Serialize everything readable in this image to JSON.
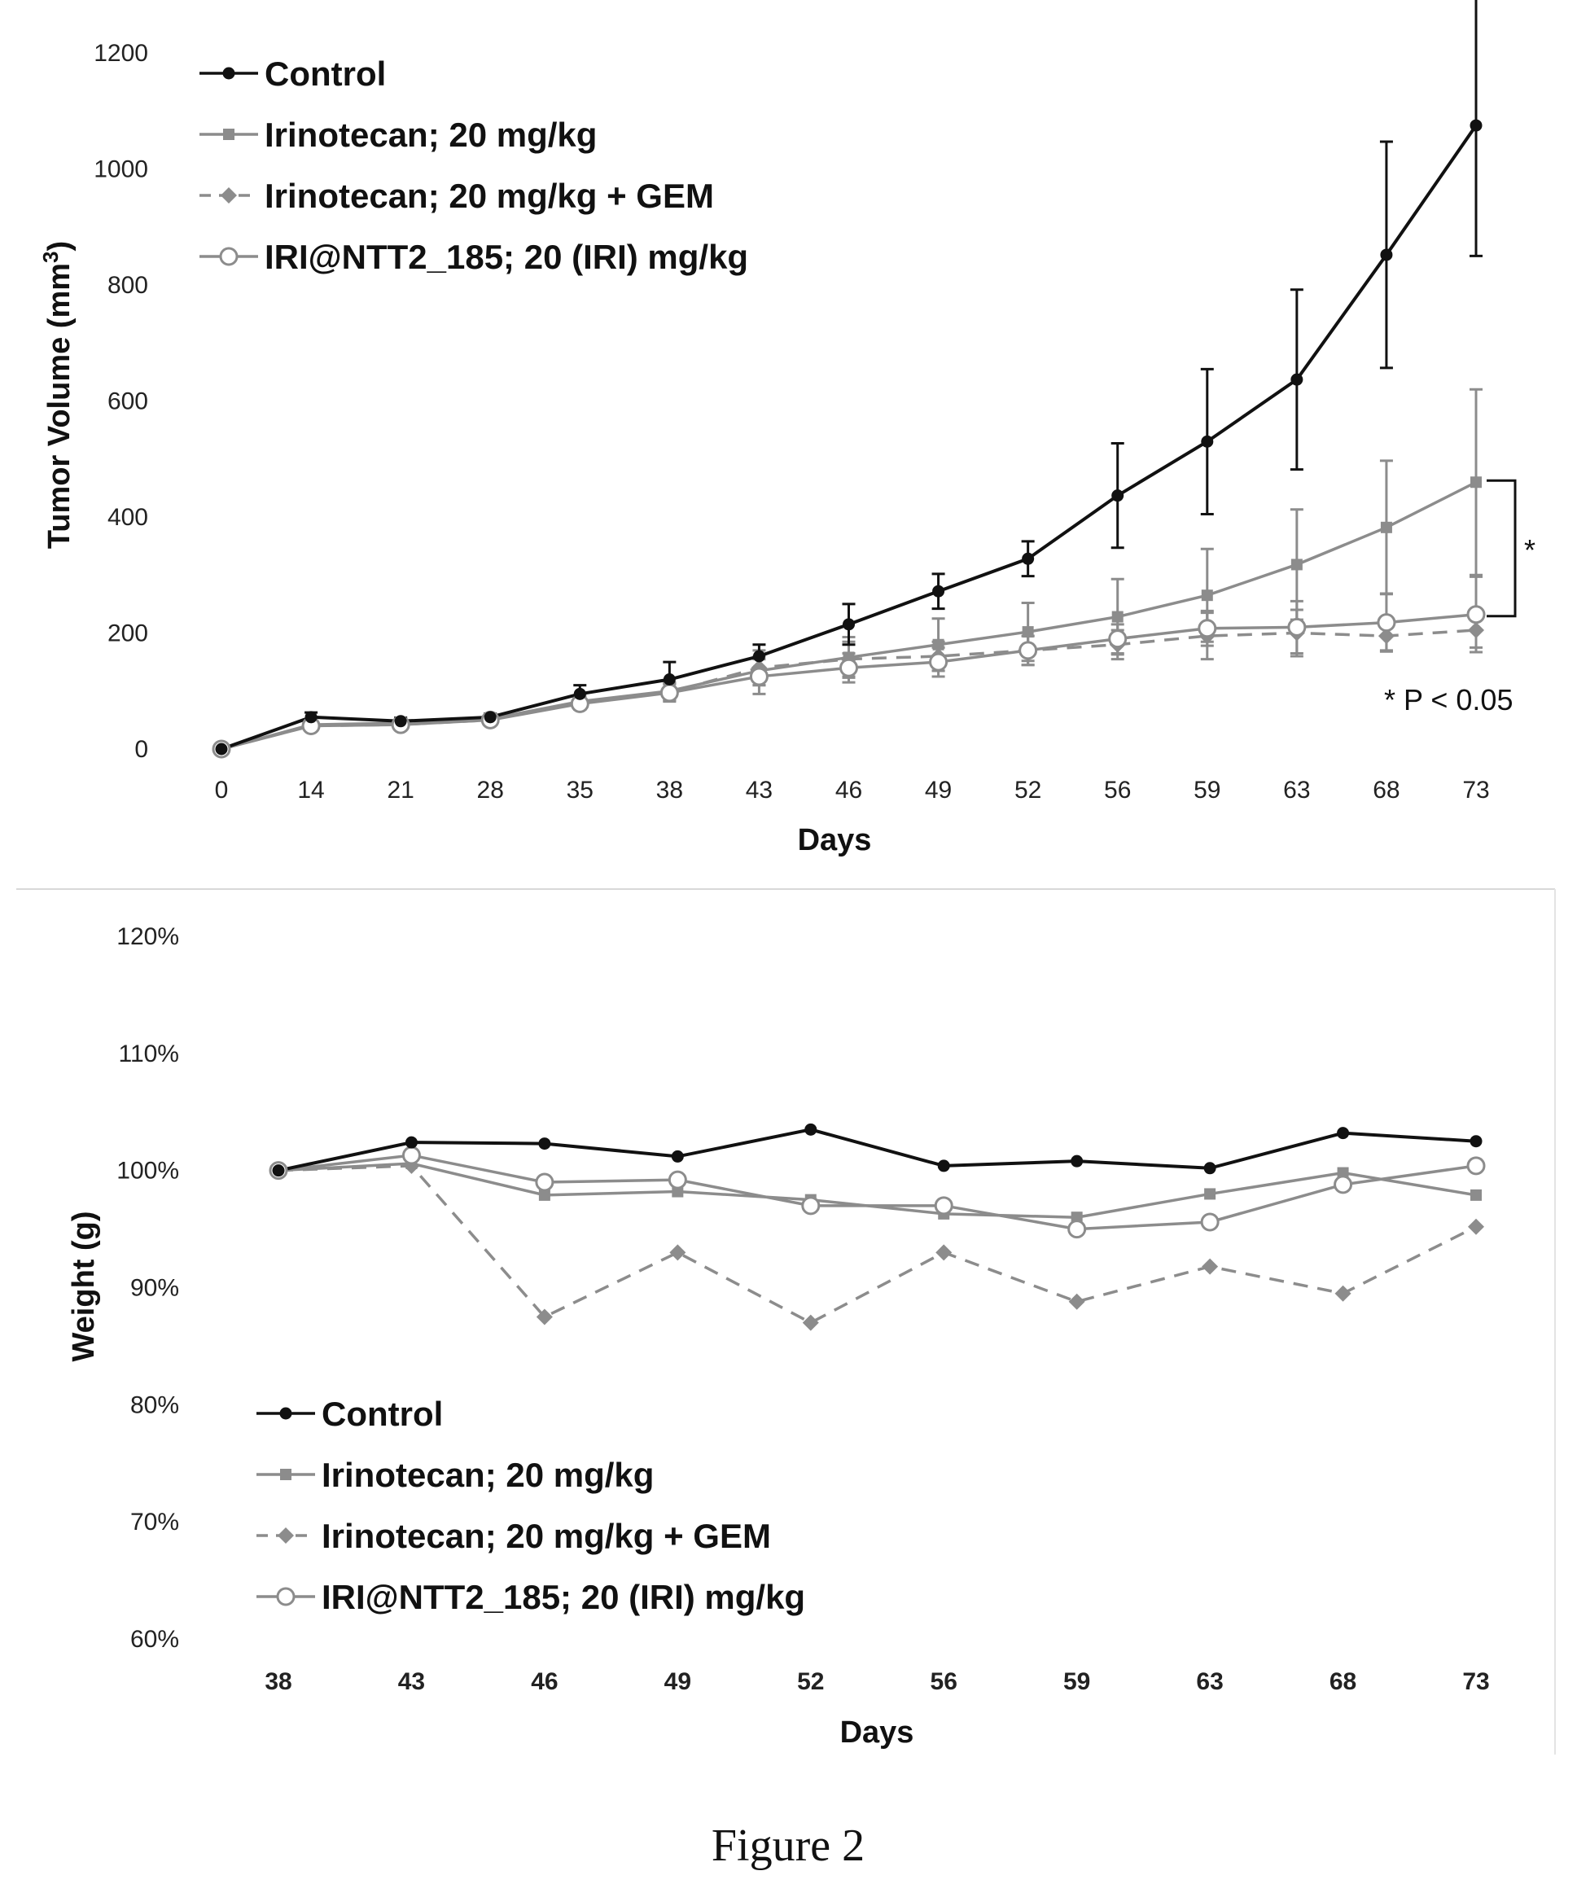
{
  "figure_caption": "Figure 2",
  "colors": {
    "control": "#111111",
    "irinotecan": "#8c8c8c",
    "gem": "#8c8c8c",
    "iri_ntt2": "#8c8c8c"
  },
  "chart_data": [
    {
      "type": "line",
      "title": "",
      "xlabel": "Days",
      "ylabel_main": "Tumor  Volume (mm",
      "ylabel_sup": "3",
      "ylabel_close": ")",
      "categories": [
        "0",
        "14",
        "21",
        "28",
        "35",
        "38",
        "43",
        "46",
        "49",
        "52",
        "56",
        "59",
        "63",
        "68",
        "73"
      ],
      "ylim": [
        0,
        1200
      ],
      "yticks": [
        "0",
        "200",
        "400",
        "600",
        "800",
        "1000",
        "1200"
      ],
      "grid": false,
      "legend_position": "top-left",
      "annotation_star": "*",
      "annotation_p": "* P < 0.05",
      "series": [
        {
          "name": "Control",
          "marker": "dot",
          "dash": false,
          "color": "#111111",
          "values": [
            0,
            55,
            48,
            55,
            95,
            120,
            160,
            215,
            272,
            328,
            437,
            530,
            637,
            852,
            1075
          ],
          "errors": [
            0,
            8,
            6,
            6,
            15,
            30,
            20,
            35,
            30,
            30,
            90,
            125,
            155,
            195,
            225
          ]
        },
        {
          "name": "Irinotecan; 20 mg/kg",
          "marker": "square",
          "dash": false,
          "color": "#8c8c8c",
          "values": [
            0,
            42,
            45,
            52,
            82,
            100,
            135,
            158,
            180,
            202,
            228,
            265,
            318,
            382,
            460
          ],
          "errors": [
            0,
            6,
            6,
            6,
            10,
            15,
            25,
            35,
            45,
            50,
            65,
            80,
            95,
            115,
            160
          ]
        },
        {
          "name": "Irinotecan; 20 mg/kg + GEM",
          "marker": "diamond",
          "dash": true,
          "color": "#8c8c8c",
          "values": [
            0,
            40,
            42,
            50,
            80,
            98,
            140,
            155,
            160,
            170,
            180,
            195,
            200,
            195,
            205
          ],
          "errors": [
            0,
            6,
            6,
            6,
            10,
            15,
            30,
            30,
            25,
            25,
            25,
            40,
            40,
            25,
            30
          ]
        },
        {
          "name": "IRI@NTT2_185; 20 (IRI) mg/kg",
          "marker": "circle",
          "dash": false,
          "color": "#8c8c8c",
          "values": [
            0,
            40,
            42,
            50,
            78,
            97,
            125,
            140,
            150,
            170,
            190,
            208,
            210,
            218,
            232
          ],
          "errors": [
            0,
            6,
            6,
            6,
            10,
            15,
            30,
            25,
            25,
            25,
            25,
            30,
            45,
            50,
            65
          ]
        }
      ]
    },
    {
      "type": "line",
      "title": "",
      "xlabel": "Days",
      "ylabel": "Weight (g)",
      "categories": [
        "38",
        "43",
        "46",
        "49",
        "52",
        "56",
        "59",
        "63",
        "68",
        "73"
      ],
      "ylim": [
        60,
        120
      ],
      "yticks": [
        "60%",
        "70%",
        "80%",
        "90%",
        "100%",
        "110%",
        "120%"
      ],
      "grid": false,
      "legend_position": "bottom-left",
      "series": [
        {
          "name": "Control",
          "marker": "dot",
          "dash": false,
          "color": "#111111",
          "values": [
            100,
            102.4,
            102.3,
            101.2,
            103.5,
            100.4,
            100.8,
            100.2,
            103.2,
            102.5
          ]
        },
        {
          "name": "Irinotecan; 20 mg/kg",
          "marker": "square",
          "dash": false,
          "color": "#8c8c8c",
          "values": [
            100,
            100.6,
            97.9,
            98.2,
            97.5,
            96.3,
            96.0,
            98.0,
            99.8,
            97.9
          ]
        },
        {
          "name": "Irinotecan; 20 mg/kg + GEM",
          "marker": "diamond",
          "dash": true,
          "color": "#8c8c8c",
          "values": [
            100,
            100.4,
            87.5,
            93.0,
            87.0,
            93.0,
            88.8,
            91.8,
            89.5,
            95.2
          ]
        },
        {
          "name": "IRI@NTT2_185; 20 (IRI) mg/kg",
          "marker": "circle",
          "dash": false,
          "color": "#8c8c8c",
          "values": [
            100,
            101.3,
            99.0,
            99.2,
            97.0,
            97.0,
            95.0,
            95.6,
            98.8,
            100.4
          ]
        }
      ]
    }
  ]
}
